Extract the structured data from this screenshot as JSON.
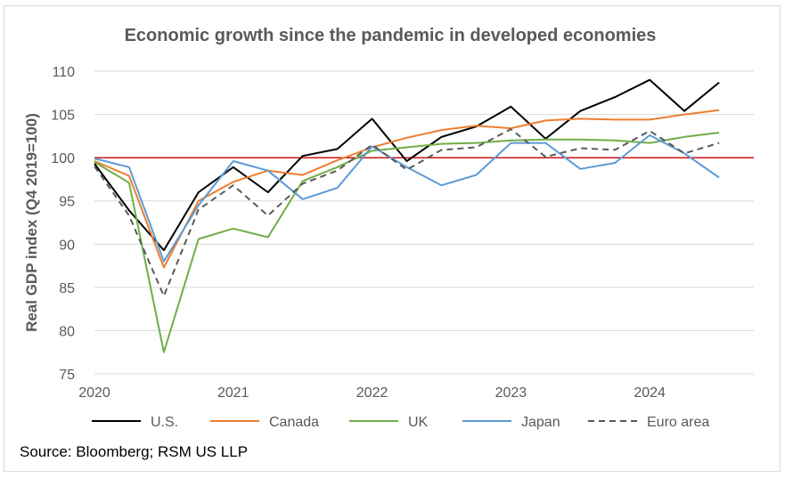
{
  "chart_data": {
    "type": "line",
    "title": "Economic growth since the pandemic in developed economies",
    "ylabel": "Real GDP index (Q4 2019=100)",
    "xlabel": "",
    "ylim": [
      75,
      110
    ],
    "yticks": [
      75,
      80,
      85,
      90,
      95,
      100,
      105,
      110
    ],
    "xlim": [
      2020.0,
      2024.75
    ],
    "xticks": [
      2020,
      2021,
      2022,
      2023,
      2024
    ],
    "grid": true,
    "legend_position": "bottom",
    "reference_line": {
      "y": 100,
      "color": "#c00000"
    },
    "x": [
      2020.0,
      2020.25,
      2020.5,
      2020.75,
      2021.0,
      2021.25,
      2021.5,
      2021.75,
      2022.0,
      2022.25,
      2022.5,
      2022.75,
      2023.0,
      2023.25,
      2023.5,
      2023.75,
      2024.0,
      2024.25,
      2024.5
    ],
    "series": [
      {
        "name": "U.S.",
        "color": "#000000",
        "dash": false,
        "values": [
          99.3,
          93.9,
          89.3,
          96.0,
          98.9,
          96.0,
          100.2,
          101.0,
          104.5,
          99.6,
          102.4,
          103.6,
          105.9,
          102.2,
          105.4,
          107.0,
          109.0,
          105.4,
          108.7
        ]
      },
      {
        "name": "Canada",
        "color": "#ed7d31",
        "dash": false,
        "values": [
          99.6,
          97.9,
          87.3,
          95.0,
          97.2,
          98.5,
          98.0,
          99.7,
          101.2,
          102.3,
          103.2,
          103.7,
          103.4,
          104.3,
          104.5,
          104.4,
          104.4,
          105.0,
          105.5
        ]
      },
      {
        "name": "UK",
        "color": "#70ad47",
        "dash": false,
        "values": [
          99.5,
          97.1,
          77.5,
          90.6,
          91.8,
          90.8,
          97.3,
          98.9,
          100.8,
          101.2,
          101.6,
          101.7,
          102.0,
          102.1,
          102.1,
          102.0,
          101.7,
          102.4,
          102.9
        ]
      },
      {
        "name": "Japan",
        "color": "#5b9bd5",
        "dash": false,
        "values": [
          99.9,
          98.9,
          88.0,
          94.5,
          99.6,
          98.5,
          95.2,
          96.5,
          101.3,
          98.9,
          96.8,
          98.0,
          101.7,
          101.7,
          98.7,
          99.4,
          102.6,
          100.5,
          97.7
        ]
      },
      {
        "name": "Euro area",
        "color": "#595959",
        "dash": true,
        "values": [
          99.0,
          93.3,
          84.0,
          94.0,
          96.8,
          93.3,
          97.0,
          98.5,
          101.5,
          98.6,
          100.9,
          101.2,
          103.3,
          100.1,
          101.1,
          100.9,
          103.1,
          100.5,
          101.7
        ]
      }
    ],
    "source": "Source: Bloomberg; RSM US LLP"
  }
}
